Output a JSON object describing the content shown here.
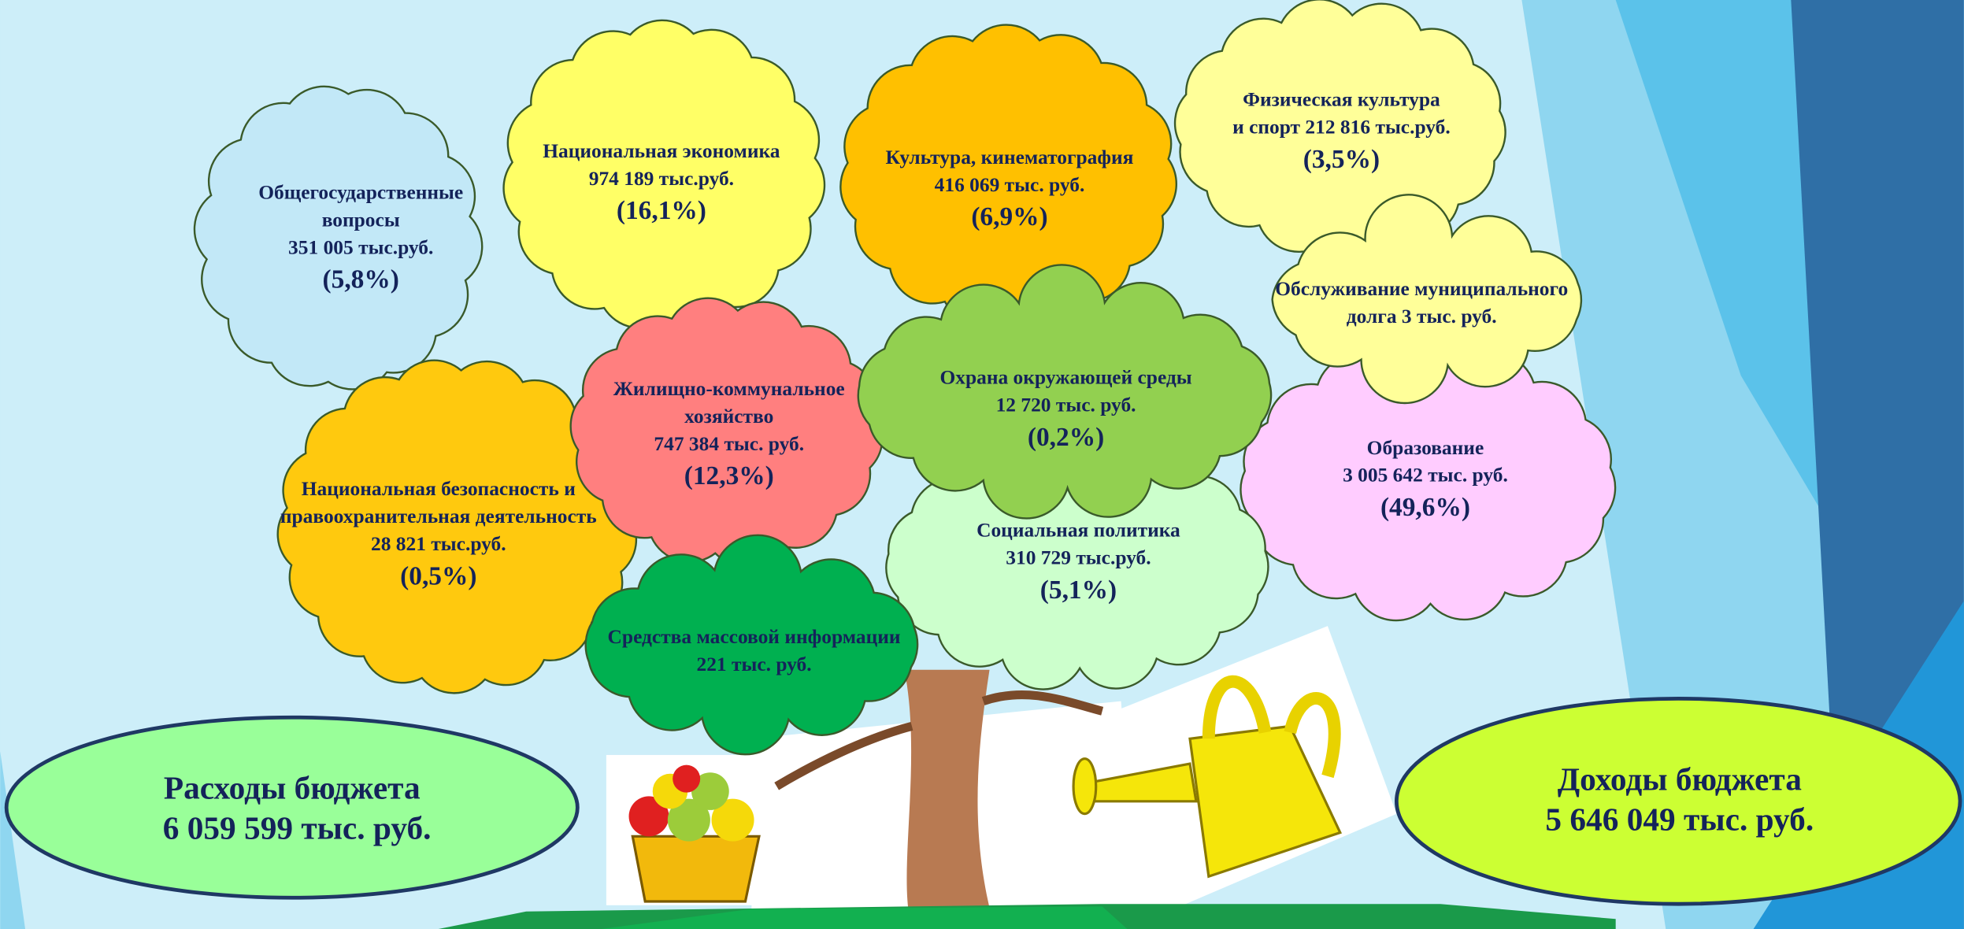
{
  "clouds": [
    {
      "lines": [
        "Общегосударственные",
        "вопросы",
        "351 005 тыс.руб."
      ],
      "percent": "(5,8%)"
    },
    {
      "lines": [
        "Национальная экономика",
        "974 189 тыс.руб."
      ],
      "percent": "(16,1%)"
    },
    {
      "lines": [
        "Культура, кинематография",
        "416 069 тыс. руб."
      ],
      "percent": "(6,9%)"
    },
    {
      "lines": [
        "Физическая культура",
        "и спорт  212 816 тыс.руб."
      ],
      "percent": "(3,5%)"
    },
    {
      "lines": [
        "Образование",
        "3 005 642 тыс. руб."
      ],
      "percent": "(49,6%)"
    },
    {
      "lines": [
        "Обслуживание муниципального",
        "долга 3 тыс. руб."
      ]
    },
    {
      "lines": [
        "Национальная безопасность и",
        "правоохранительная деятельность",
        "28 821 тыс.руб."
      ],
      "percent": "(0,5%)"
    },
    {
      "lines": [
        "Социальная политика",
        "310 729 тыс.руб."
      ],
      "percent": "(5,1%)"
    },
    {
      "lines": [
        "Жилищно-коммунальное",
        "хозяйство",
        "747 384 тыс. руб."
      ],
      "percent": "(12,3%)"
    },
    {
      "lines": [
        "Охрана окружающей среды",
        "12 720 тыс. руб."
      ],
      "percent": "(0,2%)"
    },
    {
      "lines": [
        "Средства массовой информации",
        "221 тыс. руб."
      ]
    }
  ],
  "summary": {
    "expenses": {
      "label": "Расходы бюджета",
      "amount": "6 059 599 тыс. руб."
    },
    "income": {
      "label": "Доходы бюджета",
      "amount": "5 646 049 тыс. руб."
    }
  }
}
